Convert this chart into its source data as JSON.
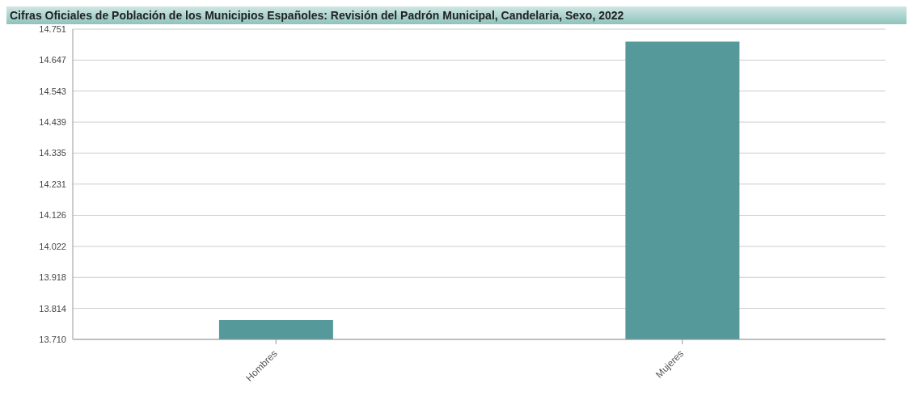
{
  "chart_data": {
    "type": "bar",
    "title": "Cifras Oficiales de Población de los Municipios Españoles: Revisión del Padrón Municipal, Candelaria, Sexo, 2022",
    "categories": [
      "Hombres",
      "Mujeres"
    ],
    "values": [
      13775,
      14709
    ],
    "color": "#55999a",
    "ylim": [
      13710,
      14751
    ],
    "yticks": [
      {
        "value": 13710,
        "label": "13.710"
      },
      {
        "value": 13814,
        "label": "13.814"
      },
      {
        "value": 13918,
        "label": "13.918"
      },
      {
        "value": 14022,
        "label": "14.022"
      },
      {
        "value": 14126,
        "label": "14.126"
      },
      {
        "value": 14231,
        "label": "14.231"
      },
      {
        "value": 14335,
        "label": "14.335"
      },
      {
        "value": 14439,
        "label": "14.439"
      },
      {
        "value": 14543,
        "label": "14.543"
      },
      {
        "value": 14647,
        "label": "14.647"
      },
      {
        "value": 14751,
        "label": "14.751"
      }
    ],
    "grid": "y"
  }
}
